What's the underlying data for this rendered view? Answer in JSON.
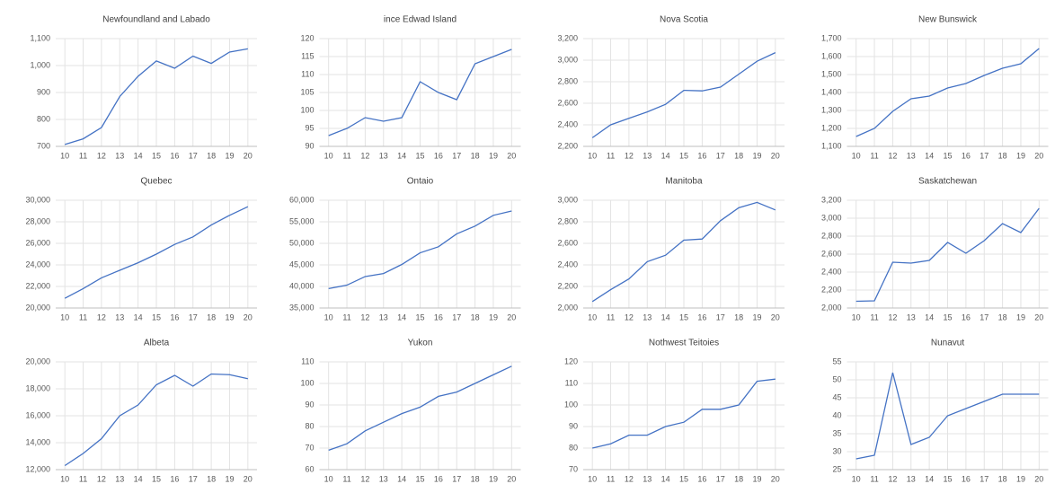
{
  "chart_data": [
    {
      "type": "line",
      "title": "Newfoundland and Labado",
      "categories": [
        "10",
        "11",
        "12",
        "13",
        "14",
        "15",
        "16",
        "17",
        "18",
        "19",
        "20"
      ],
      "series": [
        {
          "color": "#4472c4",
          "values": [
            707,
            728,
            770,
            885,
            960,
            1017,
            990,
            1035,
            1008,
            1050,
            1062
          ]
        }
      ],
      "ylim": [
        700,
        1100
      ],
      "yticks": [
        700,
        800,
        900,
        {
          "value": 1000,
          "label": "1,000"
        },
        {
          "value": 1100,
          "label": "1,100"
        }
      ],
      "grid": true
    },
    {
      "type": "line",
      "title": "ince Edwad Island",
      "categories": [
        "10",
        "11",
        "12",
        "13",
        "14",
        "15",
        "16",
        "17",
        "18",
        "19",
        "20"
      ],
      "series": [
        {
          "color": "#4472c4",
          "values": [
            93,
            95,
            98,
            97,
            98,
            108,
            105,
            103,
            113,
            115,
            117
          ]
        }
      ],
      "ylim": [
        90,
        120
      ],
      "yticks": [
        90,
        95,
        100,
        105,
        110,
        115,
        120
      ],
      "grid": true
    },
    {
      "type": "line",
      "title": "Nova Scotia",
      "categories": [
        "10",
        "11",
        "12",
        "13",
        "14",
        "15",
        "16",
        "17",
        "18",
        "19",
        "20"
      ],
      "series": [
        {
          "color": "#4472c4",
          "values": [
            2280,
            2400,
            2460,
            2520,
            2590,
            2720,
            2715,
            2750,
            2870,
            2990,
            3070
          ]
        }
      ],
      "ylim": [
        2200,
        3200
      ],
      "yticks": [
        {
          "value": 2200,
          "label": "2,200"
        },
        {
          "value": 2400,
          "label": "2,400"
        },
        {
          "value": 2600,
          "label": "2,600"
        },
        {
          "value": 2800,
          "label": "2,800"
        },
        {
          "value": 3000,
          "label": "3,000"
        },
        {
          "value": 3200,
          "label": "3,200"
        }
      ],
      "grid": true
    },
    {
      "type": "line",
      "title": "New Bunswick",
      "categories": [
        "10",
        "11",
        "12",
        "13",
        "14",
        "15",
        "16",
        "17",
        "18",
        "19",
        "20"
      ],
      "series": [
        {
          "color": "#4472c4",
          "values": [
            1155,
            1200,
            1295,
            1365,
            1380,
            1425,
            1450,
            1495,
            1535,
            1560,
            1645
          ]
        }
      ],
      "ylim": [
        1100,
        1700
      ],
      "yticks": [
        {
          "value": 1100,
          "label": "1,100"
        },
        {
          "value": 1200,
          "label": "1,200"
        },
        {
          "value": 1300,
          "label": "1,300"
        },
        {
          "value": 1400,
          "label": "1,400"
        },
        {
          "value": 1500,
          "label": "1,500"
        },
        {
          "value": 1600,
          "label": "1,600"
        },
        {
          "value": 1700,
          "label": "1,700"
        }
      ],
      "grid": true
    },
    {
      "type": "line",
      "title": "Quebec",
      "categories": [
        "10",
        "11",
        "12",
        "13",
        "14",
        "15",
        "16",
        "17",
        "18",
        "19",
        "20"
      ],
      "series": [
        {
          "color": "#4472c4",
          "values": [
            20900,
            21800,
            22800,
            23500,
            24200,
            25000,
            25900,
            26600,
            27700,
            28600,
            29400
          ]
        }
      ],
      "ylim": [
        20000,
        30000
      ],
      "yticks": [
        {
          "value": 20000,
          "label": "20,000"
        },
        {
          "value": 22000,
          "label": "22,000"
        },
        {
          "value": 24000,
          "label": "24,000"
        },
        {
          "value": 26000,
          "label": "26,000"
        },
        {
          "value": 28000,
          "label": "28,000"
        },
        {
          "value": 30000,
          "label": "30,000"
        }
      ],
      "grid": true
    },
    {
      "type": "line",
      "title": "Ontaio",
      "categories": [
        "10",
        "11",
        "12",
        "13",
        "14",
        "15",
        "16",
        "17",
        "18",
        "19",
        "20"
      ],
      "series": [
        {
          "color": "#4472c4",
          "values": [
            39500,
            40300,
            42300,
            43000,
            45100,
            47800,
            49200,
            52200,
            54000,
            56500,
            57500
          ]
        }
      ],
      "ylim": [
        35000,
        60000
      ],
      "yticks": [
        {
          "value": 35000,
          "label": "35,000"
        },
        {
          "value": 40000,
          "label": "40,000"
        },
        {
          "value": 45000,
          "label": "45,000"
        },
        {
          "value": 50000,
          "label": "50,000"
        },
        {
          "value": 55000,
          "label": "55,000"
        },
        {
          "value": 60000,
          "label": "60,000"
        }
      ],
      "grid": true
    },
    {
      "type": "line",
      "title": "Manitoba",
      "categories": [
        "10",
        "11",
        "12",
        "13",
        "14",
        "15",
        "16",
        "17",
        "18",
        "19",
        "20"
      ],
      "series": [
        {
          "color": "#4472c4",
          "values": [
            2060,
            2170,
            2270,
            2430,
            2490,
            2630,
            2640,
            2810,
            2930,
            2980,
            2910
          ]
        }
      ],
      "ylim": [
        2000,
        3000
      ],
      "yticks": [
        {
          "value": 2000,
          "label": "2,000"
        },
        {
          "value": 2200,
          "label": "2,200"
        },
        {
          "value": 2400,
          "label": "2,400"
        },
        {
          "value": 2600,
          "label": "2,600"
        },
        {
          "value": 2800,
          "label": "2,800"
        },
        {
          "value": 3000,
          "label": "3,000"
        }
      ],
      "grid": true
    },
    {
      "type": "line",
      "title": "Saskatchewan",
      "categories": [
        "10",
        "11",
        "12",
        "13",
        "14",
        "15",
        "16",
        "17",
        "18",
        "19",
        "20"
      ],
      "series": [
        {
          "color": "#4472c4",
          "values": [
            2075,
            2080,
            2510,
            2500,
            2530,
            2730,
            2610,
            2750,
            2940,
            2840,
            3110
          ]
        }
      ],
      "ylim": [
        2000,
        3200
      ],
      "yticks": [
        {
          "value": 2000,
          "label": "2,000"
        },
        {
          "value": 2200,
          "label": "2,200"
        },
        {
          "value": 2400,
          "label": "2,400"
        },
        {
          "value": 2600,
          "label": "2,600"
        },
        {
          "value": 2800,
          "label": "2,800"
        },
        {
          "value": 3000,
          "label": "3,000"
        },
        {
          "value": 3200,
          "label": "3,200"
        }
      ],
      "grid": true
    },
    {
      "type": "line",
      "title": "Albeta",
      "categories": [
        "10",
        "11",
        "12",
        "13",
        "14",
        "15",
        "16",
        "17",
        "18",
        "19",
        "20"
      ],
      "series": [
        {
          "color": "#4472c4",
          "values": [
            12300,
            13200,
            14300,
            16000,
            16800,
            18300,
            19000,
            18200,
            19100,
            19050,
            18750
          ]
        }
      ],
      "ylim": [
        12000,
        20000
      ],
      "yticks": [
        {
          "value": 12000,
          "label": "12,000"
        },
        {
          "value": 14000,
          "label": "14,000"
        },
        {
          "value": 16000,
          "label": "16,000"
        },
        {
          "value": 18000,
          "label": "18,000"
        },
        {
          "value": 20000,
          "label": "20,000"
        }
      ],
      "grid": true
    },
    {
      "type": "line",
      "title": "Yukon",
      "categories": [
        "10",
        "11",
        "12",
        "13",
        "14",
        "15",
        "16",
        "17",
        "18",
        "19",
        "20"
      ],
      "series": [
        {
          "color": "#4472c4",
          "values": [
            69,
            72,
            78,
            82,
            86,
            89,
            94,
            96,
            100,
            104,
            108
          ]
        }
      ],
      "ylim": [
        60,
        110
      ],
      "yticks": [
        60,
        70,
        80,
        90,
        100,
        110
      ],
      "grid": true
    },
    {
      "type": "line",
      "title": "Nothwest Teitoies",
      "categories": [
        "10",
        "11",
        "12",
        "13",
        "14",
        "15",
        "16",
        "17",
        "18",
        "19",
        "20"
      ],
      "series": [
        {
          "color": "#4472c4",
          "values": [
            80,
            82,
            86,
            86,
            90,
            92,
            98,
            98,
            100,
            111,
            112
          ]
        }
      ],
      "ylim": [
        70,
        120
      ],
      "yticks": [
        70,
        80,
        90,
        100,
        110,
        120
      ],
      "grid": true
    },
    {
      "type": "line",
      "title": "Nunavut",
      "categories": [
        "10",
        "11",
        "12",
        "13",
        "14",
        "15",
        "16",
        "17",
        "18",
        "19",
        "20"
      ],
      "series": [
        {
          "color": "#4472c4",
          "values": [
            28,
            29,
            52,
            32,
            34,
            40,
            42,
            44,
            46,
            46,
            46
          ]
        }
      ],
      "ylim": [
        25,
        55
      ],
      "yticks": [
        25,
        30,
        35,
        40,
        45,
        50,
        55
      ],
      "grid": true
    }
  ]
}
